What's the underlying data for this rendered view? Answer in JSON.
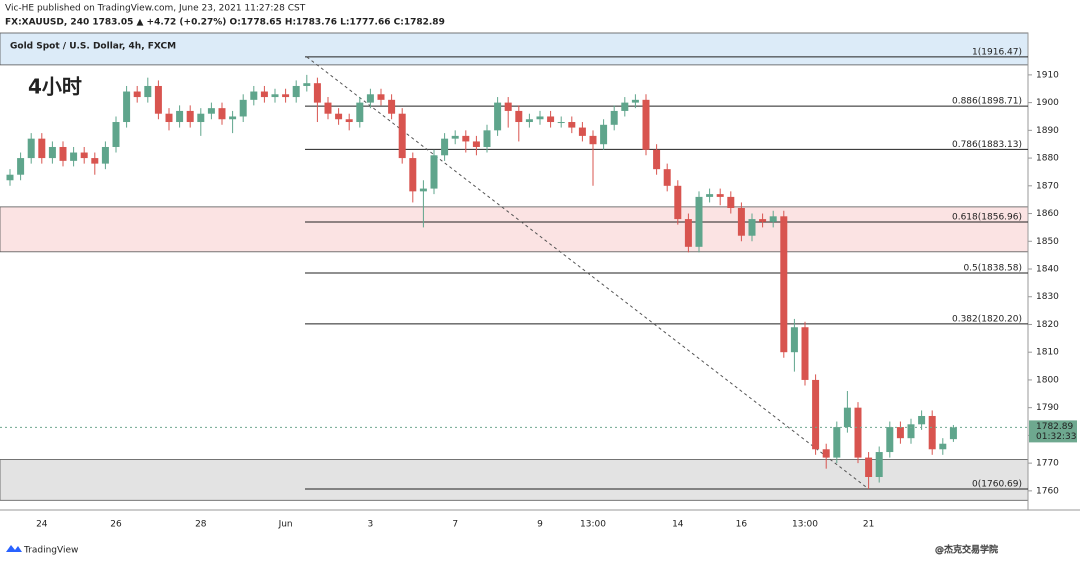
{
  "chart_data": {
    "type": "candlestick",
    "subtitle": "Vic-HE published on TradingView.com, June 23, 2021 11:27:28 CST",
    "symbol_line": "FX:XAUUSD, 240  1783.05 ▲ +4.72 (+0.27%)  O:1778.65  H:1783.76  L:1777.66  C:1782.89",
    "title": "Gold Spot / U.S. Dollar, 4h, FXCM",
    "annotation": "4小时",
    "brand": "TradingView",
    "watermark": "@杰克交易学院",
    "up_color": "#5fa58c",
    "down_color": "#d8544f",
    "categories": [
      null,
      null,
      null,
      "24",
      null,
      null,
      null,
      null,
      null,
      null,
      "26",
      null,
      null,
      null,
      null,
      null,
      null,
      null,
      "28",
      null,
      null,
      null,
      null,
      null,
      null,
      null,
      "Jun",
      null,
      null,
      null,
      null,
      null,
      null,
      null,
      "3",
      null,
      null,
      null,
      null,
      null,
      null,
      null,
      "7",
      null,
      null,
      null,
      null,
      null,
      null,
      null,
      "9",
      null,
      null,
      null,
      null,
      "13:00",
      null,
      null,
      null,
      null,
      null,
      null,
      null,
      "14",
      null,
      null,
      null,
      null,
      null,
      "16",
      null,
      null,
      null,
      null,
      null,
      "13:00",
      null,
      null,
      null,
      null,
      null,
      "21",
      null,
      null,
      null,
      null,
      null,
      null,
      null,
      null
    ],
    "open": [
      1872,
      1874,
      1880,
      1887,
      1880,
      1884,
      1879,
      1882,
      1880,
      1878,
      1884,
      1893,
      1904,
      1902,
      1906,
      1896,
      1893,
      1897,
      1893,
      1896,
      1898,
      1894,
      1895,
      1901,
      1904,
      1902,
      1903,
      1902,
      1906,
      1907,
      1900,
      1896,
      1894,
      1893,
      1900,
      1903,
      1901,
      1896,
      1880,
      1868,
      1869,
      1881,
      1887,
      1888,
      1886,
      1884,
      1890,
      1900,
      1897,
      1893,
      1894,
      1895,
      1893,
      1893,
      1891,
      1888,
      1885,
      1892,
      1897,
      1900,
      1901,
      1883,
      1876,
      1870,
      1858,
      1848,
      1866,
      1867,
      1866,
      1862,
      1852,
      1858,
      1857,
      1859,
      1810,
      1819,
      1800,
      1775,
      1772,
      1783,
      1790,
      1772,
      1765,
      1774,
      1783,
      1779,
      1784,
      1787,
      1775,
      1778.65
    ],
    "high": [
      1876,
      1882,
      1889,
      1889,
      1886,
      1886,
      1884,
      1884,
      1882,
      1886,
      1895,
      1906,
      1906,
      1909,
      1908,
      1898,
      1899,
      1899,
      1898,
      1900,
      1900,
      1897,
      1903,
      1906,
      1906,
      1905,
      1905,
      1908,
      1910,
      1909,
      1902,
      1898,
      1896,
      1902,
      1905,
      1905,
      1903,
      1898,
      1882,
      1872,
      1883,
      1889,
      1890,
      1890,
      1888,
      1892,
      1902,
      1902,
      1899,
      1896,
      1897,
      1897,
      1895,
      1895,
      1893,
      1890,
      1894,
      1899,
      1902,
      1903,
      1903,
      1885,
      1878,
      1872,
      1860,
      1868,
      1869,
      1869,
      1868,
      1864,
      1860,
      1860,
      1861,
      1861,
      1822,
      1821,
      1802,
      1777,
      1785,
      1796,
      1792,
      1774,
      1776,
      1785,
      1785,
      1786,
      1789,
      1789,
      1779,
      1783.76
    ],
    "low": [
      1870,
      1872,
      1878,
      1878,
      1878,
      1877,
      1877,
      1878,
      1874,
      1876,
      1882,
      1891,
      1900,
      1900,
      1894,
      1890,
      1891,
      1891,
      1888,
      1894,
      1892,
      1889,
      1893,
      1899,
      1900,
      1900,
      1900,
      1900,
      1904,
      1893,
      1894,
      1892,
      1890,
      1891,
      1898,
      1899,
      1894,
      1878,
      1864,
      1855,
      1867,
      1879,
      1885,
      1882,
      1881,
      1882,
      1888,
      1891,
      1886,
      1891,
      1892,
      1891,
      1891,
      1889,
      1886,
      1870,
      1883,
      1890,
      1895,
      1898,
      1881,
      1874,
      1868,
      1856,
      1846,
      1846,
      1864,
      1863,
      1860,
      1850,
      1850,
      1855,
      1855,
      1808,
      1803,
      1798,
      1773,
      1768,
      1770,
      1781,
      1770,
      1760.69,
      1763,
      1772,
      1777,
      1777,
      1782,
      1773,
      1773,
      1777.66
    ],
    "close": [
      1874,
      1880,
      1887,
      1880,
      1884,
      1879,
      1882,
      1880,
      1878,
      1884,
      1893,
      1904,
      1902,
      1906,
      1896,
      1893,
      1897,
      1893,
      1896,
      1898,
      1894,
      1895,
      1901,
      1904,
      1902,
      1903,
      1902,
      1906,
      1907,
      1900,
      1896,
      1894,
      1893,
      1900,
      1903,
      1901,
      1896,
      1880,
      1868,
      1869,
      1881,
      1887,
      1888,
      1886,
      1884,
      1890,
      1900,
      1897,
      1893,
      1894,
      1895,
      1893,
      1893,
      1891,
      1888,
      1885,
      1892,
      1897,
      1900,
      1901,
      1883,
      1876,
      1870,
      1858,
      1848,
      1866,
      1867,
      1866,
      1862,
      1852,
      1858,
      1857,
      1859,
      1810,
      1819,
      1800,
      1775,
      1772,
      1783,
      1790,
      1772,
      1765,
      1774,
      1783,
      1779,
      1784,
      1787,
      1775,
      1777,
      1782.89
    ],
    "ylim": [
      1753.1,
      1925.1
    ],
    "yticks": [
      1760,
      1770,
      1780,
      1790,
      1800,
      1810,
      1820,
      1830,
      1840,
      1850,
      1860,
      1870,
      1880,
      1890,
      1900,
      1910
    ],
    "fib_levels": [
      {
        "value": 1916.47,
        "label": "1(1916.47)"
      },
      {
        "value": 1898.71,
        "label": "0.886(1898.71)"
      },
      {
        "value": 1883.13,
        "label": "0.786(1883.13)"
      },
      {
        "value": 1856.96,
        "label": "0.618(1856.96)"
      },
      {
        "value": 1838.58,
        "label": "0.5(1838.58)"
      },
      {
        "value": 1820.2,
        "label": "0.382(1820.20)"
      },
      {
        "value": 1760.69,
        "label": "0(1760.69)"
      }
    ],
    "zones": [
      {
        "from": 1913.6,
        "to": 1925.1,
        "color": "#dcebf8"
      },
      {
        "from": 1846.2,
        "to": 1862.4,
        "color": "#fbe3e3"
      },
      {
        "from": 1756.6,
        "to": 1771.3,
        "color": "#e3e3e3"
      }
    ],
    "trendline": {
      "from_index": 28,
      "from": 1916.47,
      "to_index": 81,
      "to": 1760.69
    },
    "last_price": {
      "value": 1782.89,
      "countdown": "01:32:33",
      "color": "#6ea88f"
    }
  }
}
